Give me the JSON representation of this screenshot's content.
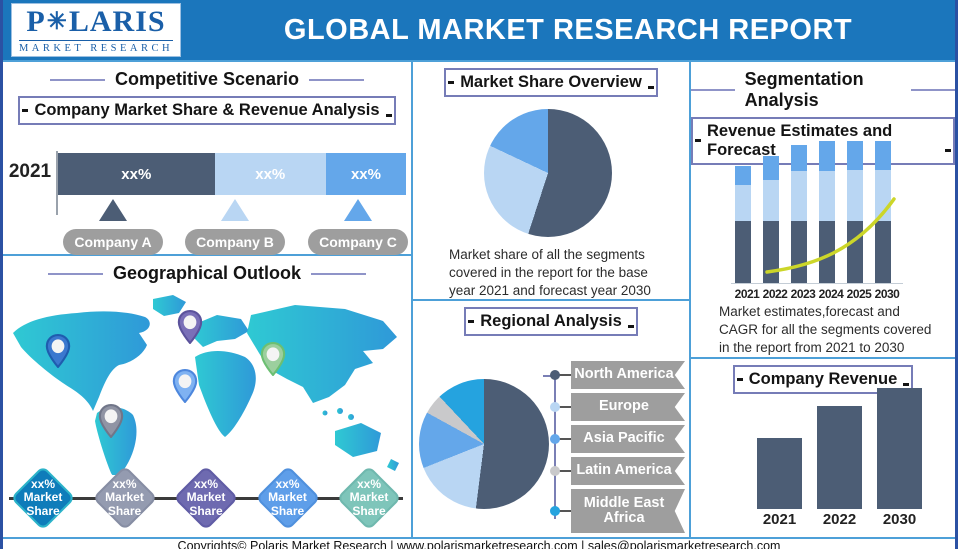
{
  "colors": {
    "header_blue": "#1b76bc",
    "outer_border": "#2b51a3",
    "panel_border": "#4da0d8",
    "heading_line": "#8f94c8",
    "box_border": "#767cb7",
    "dark_slate": "#4c5d75",
    "light_blue": "#b9d6f3",
    "mid_blue": "#64a7ea",
    "cyan": "#25a3df",
    "banner_gray": "#9e9e9e",
    "yellow_curve": "#ccd629",
    "map_teal": "#2fc9d3",
    "map_blue": "#2f99d8"
  },
  "header": {
    "title": "GLOBAL MARKET RESEARCH REPORT",
    "logo": {
      "prefix": "P",
      "star_icon": "✳",
      "suffix": "LARIS",
      "subtitle": "MARKET RESEARCH"
    }
  },
  "competitive": {
    "heading": "Competitive Scenario",
    "box_title": "Company Market Share & Revenue Analysis",
    "year_label": "2021",
    "companies": [
      {
        "name": "Company A",
        "marker_color": "#4c5d75"
      },
      {
        "name": "Company B",
        "marker_color": "#b9d6f3"
      },
      {
        "name": "Company C",
        "marker_color": "#64a7ea"
      }
    ]
  },
  "geographic": {
    "heading": "Geographical Outlook",
    "pins": [
      {
        "name": "north-america-pin",
        "fill": "#3b78cf",
        "border": "#1f5cae"
      },
      {
        "name": "europe-pin",
        "fill": "#7a70b8",
        "border": "#5c539c"
      },
      {
        "name": "east-asia-pin",
        "fill": "#9ccf9e",
        "border": "#6cbf72"
      },
      {
        "name": "middle-east-pin",
        "fill": "#7fb2f2",
        "border": "#4d87dd"
      },
      {
        "name": "south-america-pin",
        "fill": "#9094a4",
        "border": "#717689"
      }
    ],
    "diamonds": [
      {
        "pct": "xx%",
        "line1": "Market",
        "line2": "Share",
        "fill": "#0e7cba",
        "border": "#2cb3c9"
      },
      {
        "pct": "xx%",
        "line1": "Market",
        "line2": "Share",
        "fill": "#949bb0",
        "border": "#868da3"
      },
      {
        "pct": "xx%",
        "line1": "Market",
        "line2": "Share",
        "fill": "#6e6ab0",
        "border": "#605ca5"
      },
      {
        "pct": "xx%",
        "line1": "Market",
        "line2": "Share",
        "fill": "#5e9ee9",
        "border": "#4f90dd"
      },
      {
        "pct": "xx%",
        "line1": "Market",
        "line2": "Share",
        "fill": "#7ec5ba",
        "border": "#6fb8ae"
      }
    ]
  },
  "overview": {
    "box_title": "Market Share Overview",
    "description": "Market share of all the segments covered in the report for the base year 2021 and forecast year 2030"
  },
  "regional": {
    "box_title": "Regional Analysis",
    "regions": [
      {
        "label": "North America",
        "dot": "#4c5d75"
      },
      {
        "label": "Europe",
        "dot": "#b9d6f3"
      },
      {
        "label": "Asia Pacific",
        "dot": "#64a7ea"
      },
      {
        "label": "Latin America",
        "dot": "#c9c9cb"
      },
      {
        "label": "Middle East Africa",
        "dot": "#25a3df"
      }
    ]
  },
  "segmentation": {
    "heading": "Segmentation Analysis",
    "box_title": "Revenue Estimates and Forecast",
    "description": "Market estimates,forecast and CAGR for all the segments covered in the report from 2021 to 2030"
  },
  "revenue": {
    "box_title": "Company Revenue"
  },
  "footer": {
    "text": "Copyrights© Polaris Market Research | www.polarismarketresearch.com | sales@polarismarketresearch.com"
  },
  "chart_data": [
    {
      "id": "company-share-bar",
      "type": "bar",
      "subtype": "horizontal-stacked",
      "title": "Company Market Share & Revenue Analysis",
      "categories": [
        "2021"
      ],
      "series": [
        {
          "name": "Company A",
          "value_label": "xx%",
          "width_pct": 45,
          "color": "#4c5d75"
        },
        {
          "name": "Company B",
          "value_label": "xx%",
          "width_pct": 32,
          "color": "#b9d6f3"
        },
        {
          "name": "Company C",
          "value_label": "xx%",
          "width_pct": 23,
          "color": "#64a7ea"
        }
      ]
    },
    {
      "id": "market-share-pie",
      "type": "pie",
      "title": "Market Share Overview",
      "slices": [
        {
          "label": "segment-1",
          "pct": 55,
          "color": "#4c5d75"
        },
        {
          "label": "segment-2",
          "pct": 27,
          "color": "#b9d6f3"
        },
        {
          "label": "segment-3",
          "pct": 18,
          "color": "#64a7ea"
        }
      ]
    },
    {
      "id": "regional-pie",
      "type": "pie",
      "title": "Regional Analysis",
      "slices": [
        {
          "label": "North America",
          "pct": 52,
          "color": "#4c5d75"
        },
        {
          "label": "Europe",
          "pct": 17,
          "color": "#b9d6f3"
        },
        {
          "label": "Asia Pacific",
          "pct": 14,
          "color": "#64a7ea"
        },
        {
          "label": "Latin America",
          "pct": 5,
          "color": "#c9c9cb"
        },
        {
          "label": "Middle East Africa",
          "pct": 12,
          "color": "#25a3df"
        }
      ]
    },
    {
      "id": "revenue-forecast",
      "type": "bar",
      "subtype": "vertical-stacked",
      "title": "Revenue Estimates and Forecast",
      "categories": [
        "2021",
        "2022",
        "2023",
        "2024",
        "2025",
        "2030"
      ],
      "unit": "px",
      "series": [
        {
          "name": "segment-bottom",
          "color": "#4c5d75",
          "values": [
            62,
            62,
            62,
            62,
            62,
            62
          ]
        },
        {
          "name": "segment-middle",
          "color": "#b9d6f3",
          "values": [
            36,
            41,
            50,
            50,
            51,
            51
          ]
        },
        {
          "name": "segment-top",
          "color": "#64a7ea",
          "values": [
            19,
            24,
            26,
            30,
            29,
            29
          ]
        }
      ],
      "cagr_curve": {
        "color": "#ccd629",
        "trend": "exponential-up"
      }
    },
    {
      "id": "company-revenue",
      "type": "bar",
      "title": "Company Revenue",
      "categories": [
        "2021",
        "2022",
        "2030"
      ],
      "values": [
        71,
        103,
        121
      ],
      "unit": "px",
      "color": "#4c5d75"
    }
  ]
}
